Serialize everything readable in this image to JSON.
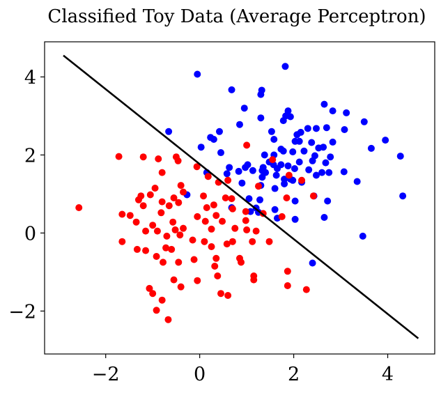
{
  "chart_data": {
    "type": "scatter",
    "title": "Classified Toy Data (Average Perceptron)",
    "xlabel": "",
    "ylabel": "",
    "xlim": [
      -3.3,
      5.0
    ],
    "ylim": [
      -3.1,
      4.9
    ],
    "x_ticks": [
      -2,
      0,
      2,
      4
    ],
    "y_ticks": [
      -2,
      0,
      2,
      4
    ],
    "x_tick_labels": [
      "−2",
      "0",
      "2",
      "4"
    ],
    "y_tick_labels": [
      "−2",
      "0",
      "2",
      "4"
    ],
    "grid": false,
    "legend": "none",
    "colors": {
      "class_a": "#0000ff",
      "class_b": "#ff0000",
      "boundary": "#000000"
    },
    "series": [
      {
        "color": "#0000ff",
        "points": [
          [
            -0.05,
            4.07
          ],
          [
            1.82,
            4.27
          ],
          [
            0.68,
            3.67
          ],
          [
            1.32,
            3.66
          ],
          [
            1.3,
            3.55
          ],
          [
            2.65,
            3.3
          ],
          [
            2.83,
            3.13
          ],
          [
            3.12,
            3.08
          ],
          [
            0.95,
            3.2
          ],
          [
            1.88,
            3.13
          ],
          [
            1.83,
            3.0
          ],
          [
            1.93,
            2.98
          ],
          [
            1.78,
            2.88
          ],
          [
            1.3,
            2.95
          ],
          [
            2.15,
            2.58
          ],
          [
            2.3,
            2.68
          ],
          [
            2.48,
            2.68
          ],
          [
            2.7,
            2.7
          ],
          [
            3.08,
            2.65
          ],
          [
            3.5,
            2.85
          ],
          [
            1.53,
            2.6
          ],
          [
            0.85,
            2.78
          ],
          [
            0.42,
            2.6
          ],
          [
            -0.66,
            2.6
          ],
          [
            0.23,
            2.45
          ],
          [
            0.3,
            2.4
          ],
          [
            1.58,
            2.4
          ],
          [
            2.07,
            2.52
          ],
          [
            2.12,
            2.35
          ],
          [
            2.38,
            2.32
          ],
          [
            2.83,
            2.33
          ],
          [
            2.63,
            2.2
          ],
          [
            2.53,
            2.18
          ],
          [
            3.65,
            2.17
          ],
          [
            3.95,
            2.38
          ],
          [
            4.27,
            1.97
          ],
          [
            1.73,
            2.15
          ],
          [
            1.78,
            2.1
          ],
          [
            2.03,
            2.35
          ],
          [
            0.03,
            2.2
          ],
          [
            0.45,
            2.06
          ],
          [
            1.38,
            2.0
          ],
          [
            1.58,
            2.0
          ],
          [
            1.98,
            2.08
          ],
          [
            2.22,
            2.1
          ],
          [
            2.45,
            1.98
          ],
          [
            2.78,
            1.95
          ],
          [
            2.12,
            1.82
          ],
          [
            2.68,
            1.8
          ],
          [
            1.02,
            1.75
          ],
          [
            1.48,
            1.82
          ],
          [
            1.73,
            1.75
          ],
          [
            1.35,
            1.68
          ],
          [
            1.88,
            1.72
          ],
          [
            2.4,
            1.85
          ],
          [
            0.83,
            1.58
          ],
          [
            0.97,
            1.68
          ],
          [
            1.13,
            1.6
          ],
          [
            1.33,
            1.6
          ],
          [
            1.57,
            1.75
          ],
          [
            1.65,
            1.65
          ],
          [
            2.02,
            1.65
          ],
          [
            2.32,
            1.62
          ],
          [
            2.6,
            1.55
          ],
          [
            2.75,
            1.55
          ],
          [
            3.07,
            1.57
          ],
          [
            0.63,
            1.68
          ],
          [
            0.58,
            1.52
          ],
          [
            0.15,
            1.55
          ],
          [
            1.33,
            1.43
          ],
          [
            1.93,
            1.38
          ],
          [
            2.48,
            1.48
          ],
          [
            1.4,
            1.55
          ],
          [
            1.63,
            1.48
          ],
          [
            1.8,
            1.38
          ],
          [
            1.98,
            1.35
          ],
          [
            2.17,
            1.3
          ],
          [
            3.35,
            1.32
          ],
          [
            0.9,
            1.28
          ],
          [
            1.8,
            1.26
          ],
          [
            1.3,
            1.22
          ],
          [
            1.6,
            1.14
          ],
          [
            2.43,
            0.95
          ],
          [
            2.72,
            0.82
          ],
          [
            4.32,
            0.95
          ],
          [
            -0.27,
            0.98
          ],
          [
            1.05,
            0.88
          ],
          [
            1.28,
            0.85
          ],
          [
            1.6,
            0.6
          ],
          [
            2.03,
            0.82
          ],
          [
            0.68,
            0.65
          ],
          [
            1.08,
            0.55
          ],
          [
            1.25,
            0.53
          ],
          [
            1.2,
            0.64
          ],
          [
            1.65,
            0.38
          ],
          [
            2.03,
            0.35
          ],
          [
            2.65,
            0.4
          ],
          [
            3.47,
            -0.08
          ],
          [
            2.4,
            -0.77
          ]
        ]
      },
      {
        "color": "#ff0000",
        "points": [
          [
            1.0,
            2.25
          ],
          [
            -1.72,
            1.96
          ],
          [
            -1.2,
            1.95
          ],
          [
            -0.88,
            1.9
          ],
          [
            -0.5,
            1.95
          ],
          [
            -0.46,
            1.85
          ],
          [
            -0.06,
            1.7
          ],
          [
            -0.8,
            1.55
          ],
          [
            0.18,
            1.45
          ],
          [
            1.55,
            1.88
          ],
          [
            1.9,
            1.48
          ],
          [
            2.17,
            1.35
          ],
          [
            0.6,
            1.35
          ],
          [
            0.4,
            1.3
          ],
          [
            -0.4,
            1.22
          ],
          [
            1.25,
            1.2
          ],
          [
            -0.95,
            1.15
          ],
          [
            -0.35,
            1.05
          ],
          [
            -1.05,
            0.98
          ],
          [
            -1.25,
            0.95
          ],
          [
            -0.55,
            0.9
          ],
          [
            0.08,
            0.95
          ],
          [
            0.55,
            0.9
          ],
          [
            0.68,
            0.88
          ],
          [
            1.85,
            0.9
          ],
          [
            2.42,
            0.95
          ],
          [
            -1.3,
            0.85
          ],
          [
            -0.8,
            0.8
          ],
          [
            -0.45,
            0.78
          ],
          [
            0.3,
            0.72
          ],
          [
            -2.57,
            0.65
          ],
          [
            -1.2,
            0.7
          ],
          [
            -0.65,
            0.7
          ],
          [
            0.15,
            0.65
          ],
          [
            0.7,
            0.62
          ],
          [
            0.98,
            0.55
          ],
          [
            -1.65,
            0.48
          ],
          [
            -1.48,
            0.45
          ],
          [
            -0.82,
            0.52
          ],
          [
            -0.05,
            0.42
          ],
          [
            0.35,
            0.45
          ],
          [
            1.35,
            0.5
          ],
          [
            1.75,
            0.42
          ],
          [
            -1.35,
            0.28
          ],
          [
            -1.0,
            0.2
          ],
          [
            -0.57,
            0.28
          ],
          [
            0.12,
            0.3
          ],
          [
            0.48,
            0.3
          ],
          [
            0.98,
            0.32
          ],
          [
            -1.15,
            0.05
          ],
          [
            -0.9,
            0.05
          ],
          [
            -0.52,
            0.08
          ],
          [
            -0.35,
            0.12
          ],
          [
            0.25,
            0.1
          ],
          [
            0.75,
            0.12
          ],
          [
            1.2,
            0.05
          ],
          [
            -0.7,
            -0.08
          ],
          [
            -0.42,
            -0.05
          ],
          [
            1.0,
            0.08
          ],
          [
            -1.65,
            -0.22
          ],
          [
            -0.15,
            -0.18
          ],
          [
            0.1,
            -0.22
          ],
          [
            0.7,
            -0.22
          ],
          [
            1.12,
            -0.22
          ],
          [
            1.48,
            -0.22
          ],
          [
            -1.33,
            -0.42
          ],
          [
            -1.15,
            -0.45
          ],
          [
            -0.72,
            -0.38
          ],
          [
            -0.6,
            -0.42
          ],
          [
            0.25,
            -0.35
          ],
          [
            0.58,
            -0.28
          ],
          [
            -0.92,
            -0.6
          ],
          [
            -0.78,
            -0.75
          ],
          [
            -0.45,
            -0.75
          ],
          [
            0.35,
            -0.65
          ],
          [
            0.85,
            -0.65
          ],
          [
            -0.12,
            -0.68
          ],
          [
            0.32,
            -0.85
          ],
          [
            0.88,
            -0.75
          ],
          [
            0.38,
            -1.1
          ],
          [
            1.15,
            -1.1
          ],
          [
            -0.55,
            -1.2
          ],
          [
            -0.05,
            -1.22
          ],
          [
            1.15,
            -1.2
          ],
          [
            1.87,
            -0.98
          ],
          [
            -1.07,
            -1.42
          ],
          [
            -0.4,
            -1.38
          ],
          [
            0.45,
            -1.55
          ],
          [
            0.6,
            -1.6
          ],
          [
            1.87,
            -1.35
          ],
          [
            2.27,
            -1.45
          ],
          [
            -1.0,
            -1.55
          ],
          [
            -0.8,
            -1.72
          ],
          [
            -0.92,
            -1.98
          ],
          [
            -0.67,
            -2.22
          ]
        ]
      }
    ],
    "decision_boundary": {
      "x": [
        -2.9,
        4.65
      ],
      "y": [
        4.55,
        -2.7
      ]
    }
  }
}
